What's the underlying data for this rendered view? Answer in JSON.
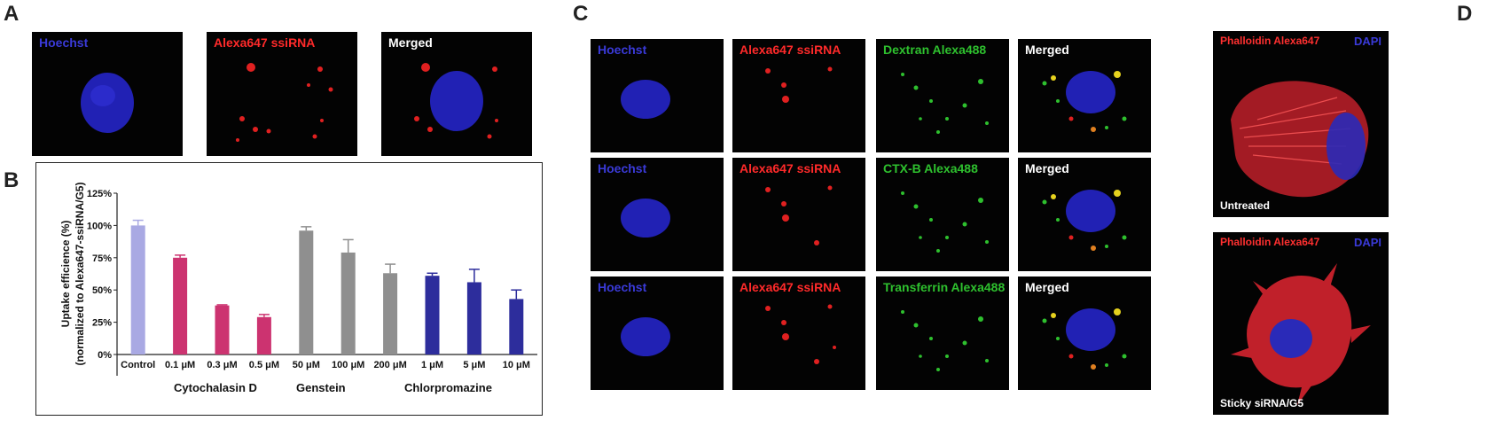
{
  "panels": {
    "A": {
      "letter": "A",
      "images": [
        {
          "label": "Hoechst",
          "color": "#3a3ad8"
        },
        {
          "label": "Alexa647 ssiRNA",
          "color": "#ff2a2a"
        },
        {
          "label": "Merged",
          "color": "#ffffff"
        }
      ]
    },
    "B": {
      "letter": "B"
    },
    "C": {
      "letter": "C",
      "rows": [
        {
          "cells": [
            {
              "label": "Hoechst",
              "color": "#3a3ad8"
            },
            {
              "label": "Alexa647 ssiRNA",
              "color": "#ff2a2a"
            },
            {
              "label": "Dextran Alexa488",
              "color": "#2ec02e"
            },
            {
              "label": "Merged",
              "color": "#ffffff"
            }
          ]
        },
        {
          "cells": [
            {
              "label": "Hoechst",
              "color": "#3a3ad8"
            },
            {
              "label": "Alexa647 ssiRNA",
              "color": "#ff2a2a"
            },
            {
              "label": "CTX-B Alexa488",
              "color": "#2ec02e"
            },
            {
              "label": "Merged",
              "color": "#ffffff"
            }
          ]
        },
        {
          "cells": [
            {
              "label": "Hoechst",
              "color": "#3a3ad8"
            },
            {
              "label": "Alexa647 ssiRNA",
              "color": "#ff2a2a"
            },
            {
              "label": "Transferrin Alexa488",
              "color": "#2ec02e"
            },
            {
              "label": "Merged",
              "color": "#ffffff"
            }
          ]
        }
      ]
    },
    "D": {
      "letter": "D",
      "images": [
        {
          "label_left": "Phalloidin Alexa647",
          "label_right": "DAPI",
          "caption": "Untreated"
        },
        {
          "label_left": "Phalloidin Alexa647",
          "label_right": "DAPI",
          "caption": "Sticky siRNA/G5"
        }
      ]
    }
  },
  "chart_data": {
    "type": "bar",
    "ylabel": "Uptake efficience (%) (normalized to Alexa647-ssiRNA/G5)",
    "ylim": [
      0,
      125
    ],
    "yticks": [
      "0%",
      "25%",
      "50%",
      "75%",
      "100%",
      "125%"
    ],
    "categories": [
      "Control",
      "0.1 μM",
      "0.3 μM",
      "0.5 μM",
      "50 μM",
      "100 μM",
      "200 μM",
      "1 μM",
      "5 μM",
      "10 μM"
    ],
    "values": [
      100,
      75,
      38,
      29,
      96,
      79,
      63,
      61,
      56,
      43
    ],
    "errors": [
      4,
      2,
      0.5,
      2,
      3,
      10,
      7,
      2,
      10,
      7
    ],
    "colors": [
      "#a9a9e3",
      "#cc3370",
      "#cc3370",
      "#cc3370",
      "#8f8f8f",
      "#8f8f8f",
      "#8f8f8f",
      "#2d2d9c",
      "#2d2d9c",
      "#2d2d9c"
    ],
    "groups": [
      {
        "label": "Cytochalasin D"
      },
      {
        "label": "Genstein"
      },
      {
        "label": "Chlorpromazine"
      }
    ]
  }
}
